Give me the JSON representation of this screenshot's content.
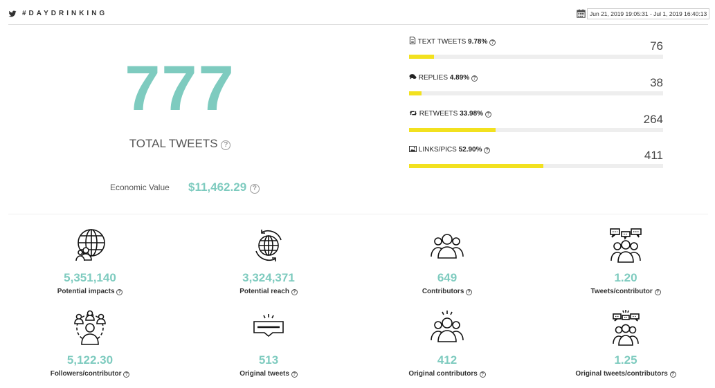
{
  "header": {
    "twitter_icon": "twitter-bird-icon",
    "hashtag": "#DAYDRINKING",
    "calendar_icon": "calendar-icon",
    "date_range": "Jun 21, 2019 19:05:31 - Jul 1, 2019 16:40:13"
  },
  "summary": {
    "total_tweets": "777",
    "total_tweets_label": "TOTAL TWEETS",
    "help_glyph": "?",
    "economic_value_label": "Economic Value",
    "economic_value": "$11,462.29"
  },
  "tweet_types": [
    {
      "icon": "document-icon",
      "label": "TEXT TWEETS",
      "percent": "9.78%",
      "fraction": 0.0978,
      "count": "76"
    },
    {
      "icon": "speech-bubbles-icon",
      "label": "REPLIES",
      "percent": "4.89%",
      "fraction": 0.0489,
      "count": "38"
    },
    {
      "icon": "retweet-icon",
      "label": "RETWEETS",
      "percent": "33.98%",
      "fraction": 0.3398,
      "count": "264"
    },
    {
      "icon": "image-icon",
      "label": "LINKS/PICS",
      "percent": "52.90%",
      "fraction": 0.529,
      "count": "411"
    }
  ],
  "accent_colors": {
    "teal": "#7ecbbf",
    "yellow": "#f2e11f",
    "track": "#eeeeee"
  },
  "stats": [
    {
      "icon": "globe-people-icon",
      "value": "5,351,140",
      "label": "Potential impacts"
    },
    {
      "icon": "globe-refresh-icon",
      "value": "3,324,371",
      "label": "Potential reach"
    },
    {
      "icon": "group-icon",
      "value": "649",
      "label": "Contributors"
    },
    {
      "icon": "group-chat-icon",
      "value": "1.20",
      "label": "Tweets/contributor"
    },
    {
      "icon": "network-people-icon",
      "value": "5,122.30",
      "label": "Followers/contributor"
    },
    {
      "icon": "tweet-box-icon",
      "value": "513",
      "label": "Original tweets"
    },
    {
      "icon": "group-spark-icon",
      "value": "412",
      "label": "Original contributors"
    },
    {
      "icon": "group-chat-spark-icon",
      "value": "1.25",
      "label": "Original tweets/contributors"
    }
  ]
}
